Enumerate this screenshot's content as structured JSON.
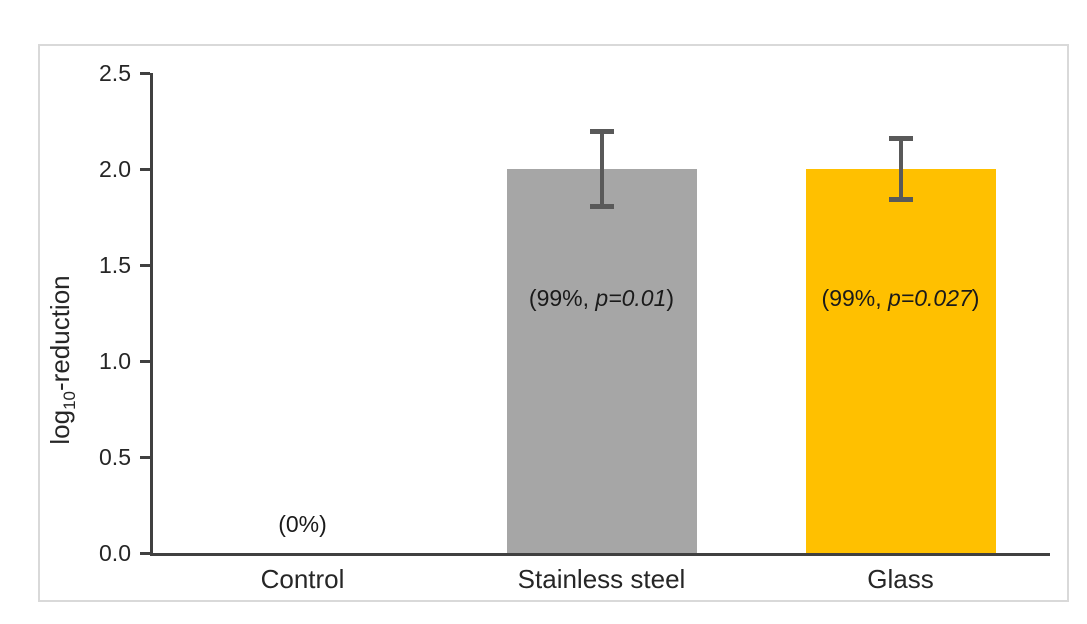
{
  "chart_data": {
    "type": "bar",
    "title": "",
    "xlabel": "",
    "ylabel": "log10-reduction",
    "ylabel_parts": {
      "prefix": "log",
      "subscript": "10",
      "suffix": "-reduction"
    },
    "ylim": [
      0,
      2.5
    ],
    "yticks": [
      "0.0",
      "0.5",
      "1.0",
      "1.5",
      "2.0",
      "2.5"
    ],
    "grid": false,
    "legend": false,
    "categories": [
      "Control",
      "Stainless steel",
      "Glass"
    ],
    "values": [
      0,
      2.0,
      2.0
    ],
    "errors": [
      0,
      0.2,
      0.16
    ],
    "bar_colors": [
      "none",
      "#a6a6a6",
      "#ffc000"
    ],
    "annotations": [
      {
        "plain": "(0%)",
        "italic": "",
        "close": "",
        "y": 0.15
      },
      {
        "plain": "(99%, ",
        "italic": "p=0.01",
        "close": ")",
        "y": 1.33
      },
      {
        "plain": "(99%, ",
        "italic": "p=0.027",
        "close": ")",
        "y": 1.33
      }
    ],
    "colors": {
      "axis": "#404040",
      "error_bar": "#595959",
      "text": "#262626",
      "frame_border": "#d9d9d9",
      "background": "#ffffff"
    }
  }
}
